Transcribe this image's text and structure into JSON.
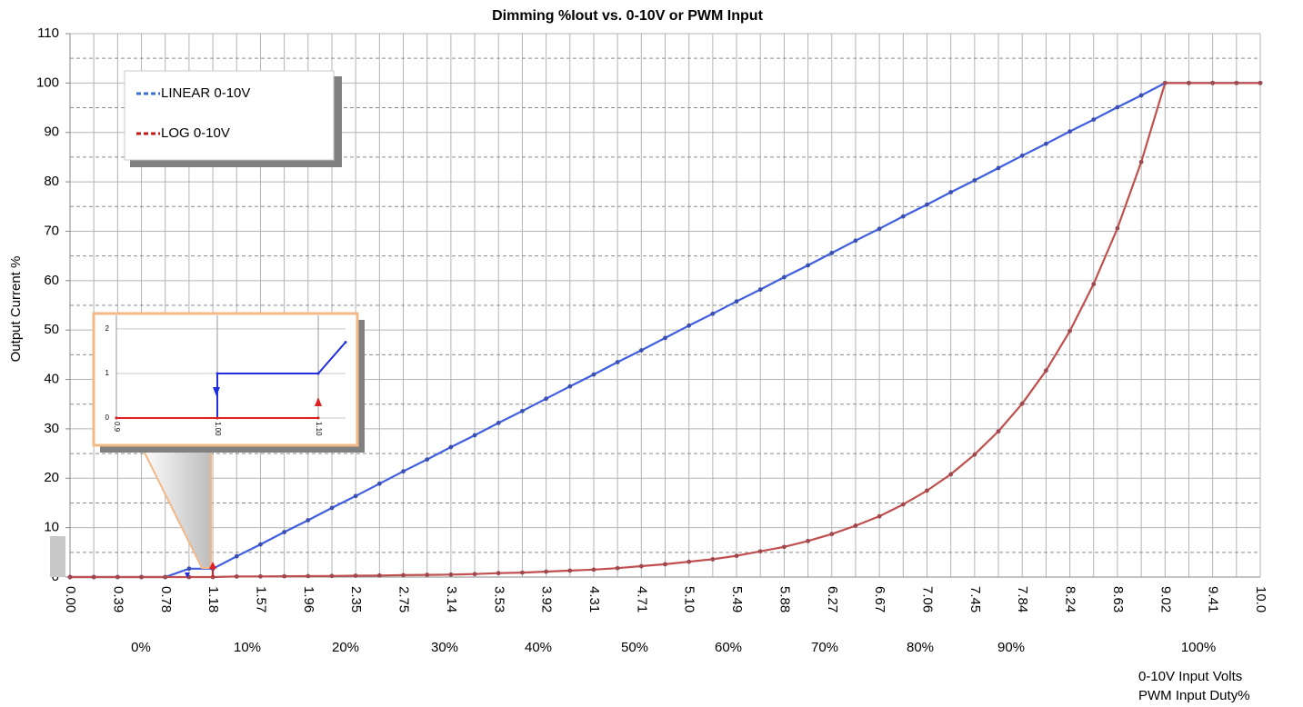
{
  "chart_data": [
    {
      "type": "line",
      "title": "Dimming %Iout vs. 0-10V or PWM Input",
      "ylabel": "Output Current %",
      "xlabel": "0-10V Input Volts",
      "x2label": "PWM Input Duty%",
      "categories": [
        "0.00",
        null,
        "0.39",
        null,
        "0.78",
        null,
        "1.18",
        null,
        "1.57",
        null,
        "1.96",
        null,
        "2.35",
        null,
        "2.75",
        null,
        "3.14",
        null,
        "3.53",
        null,
        "3.92",
        null,
        "4.31",
        null,
        "4.71",
        null,
        "5.10",
        null,
        "5.49",
        null,
        "5.88",
        null,
        "6.27",
        null,
        "6.67",
        null,
        "7.06",
        null,
        "7.45",
        null,
        "7.84",
        null,
        "8.24",
        null,
        "8.63",
        null,
        "9.02",
        null,
        "9.41",
        null,
        "10.0"
      ],
      "x2_labels": [
        "0%",
        "10%",
        "20%",
        "30%",
        "40%",
        "50%",
        "60%",
        "70%",
        "80%",
        "90%",
        "100%"
      ],
      "series": [
        {
          "name": "LINEAR 0-10V",
          "color": "#3f5fe0",
          "marker_color": "#3b4fb0",
          "values": [
            0,
            0,
            0,
            0,
            0,
            1.7,
            1.7,
            4.2,
            6.6,
            9.1,
            11.5,
            14.0,
            16.4,
            18.9,
            21.4,
            23.8,
            26.3,
            28.7,
            31.2,
            33.6,
            36.1,
            38.6,
            41.0,
            43.5,
            45.9,
            48.4,
            50.9,
            53.3,
            55.8,
            58.2,
            60.7,
            63.1,
            65.6,
            68.1,
            70.5,
            73.0,
            75.4,
            77.9,
            80.3,
            82.8,
            85.3,
            87.7,
            90.2,
            92.6,
            95.1,
            97.5,
            100,
            100,
            100,
            100,
            100
          ]
        },
        {
          "name": "LOG 0-10V",
          "color": "#c0504d",
          "marker_color": "#a04850",
          "values": [
            0,
            0,
            0,
            0,
            0,
            0,
            0,
            0.11,
            0.13,
            0.16,
            0.19,
            0.22,
            0.27,
            0.32,
            0.38,
            0.45,
            0.5,
            0.6,
            0.8,
            0.9,
            1.1,
            1.3,
            1.5,
            1.8,
            2.2,
            2.6,
            3.1,
            3.6,
            4.3,
            5.2,
            6.1,
            7.3,
            8.7,
            10.4,
            12.3,
            14.7,
            17.5,
            20.8,
            24.8,
            29.5,
            35.1,
            41.8,
            49.8,
            59.3,
            70.6,
            84.0,
            100,
            100,
            100,
            100,
            100
          ]
        }
      ],
      "ylim": [
        0,
        110
      ],
      "yticks": [
        0,
        10,
        20,
        30,
        40,
        50,
        60,
        70,
        80,
        90,
        100,
        110
      ],
      "yminorticks": [
        5,
        15,
        25,
        35,
        45,
        55,
        65,
        75,
        85,
        95,
        105
      ],
      "grid": true,
      "legend": "upper left"
    },
    {
      "type": "line",
      "xlim": [
        0.9,
        1.127
      ],
      "ylim": [
        0,
        2.1
      ],
      "xticks": [
        0.9,
        {
          "value": 1.0,
          "label": "1.00"
        },
        {
          "value": 1.1,
          "label": "1.10"
        }
      ],
      "yticks": [
        0,
        1,
        2
      ],
      "series": [
        {
          "color": "#1f2fe0",
          "x": [
            0.9,
            1.0,
            1.0,
            1.1,
            1.127
          ],
          "values": [
            0,
            0,
            1,
            1,
            1.7
          ]
        },
        {
          "color": "#e02020",
          "x": [
            0.9,
            1.0,
            1.1
          ],
          "values": [
            0,
            0,
            0
          ]
        }
      ]
    }
  ]
}
